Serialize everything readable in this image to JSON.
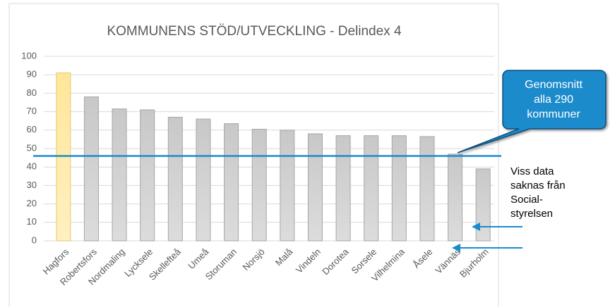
{
  "chart_data": {
    "type": "bar",
    "title": "KOMMUNENS STÖD/UTVECKLING  - Delindex 4",
    "categories": [
      "Hagfors",
      "Robertsfors",
      "Nordmaling",
      "Lycksele",
      "Skellefteå",
      "Umeå",
      "Storuman",
      "Norsjö",
      "Malå",
      "Vindeln",
      "Dorotea",
      "Sorsele",
      "Vilhelmina",
      "Åsele",
      "Vännäs",
      "Bjurholm"
    ],
    "values": [
      91,
      78,
      71.5,
      71,
      67,
      66,
      63.5,
      60.5,
      60,
      58,
      57,
      57,
      57,
      56.5,
      47,
      39
    ],
    "color": "#c8c8c8",
    "highlight_color": "#ffe699",
    "highlight_index": 0,
    "ylim": [
      0,
      100
    ],
    "yticks": [
      0,
      10,
      20,
      30,
      40,
      50,
      60,
      70,
      80,
      90,
      100
    ],
    "grid": true,
    "average": {
      "value": 46,
      "color": "#1a8bcc",
      "label": [
        "Genomsnitt",
        "alla 290",
        "kommuner"
      ]
    },
    "note": [
      "Viss data",
      "saknas från",
      "Social-",
      "styrelsen"
    ]
  }
}
